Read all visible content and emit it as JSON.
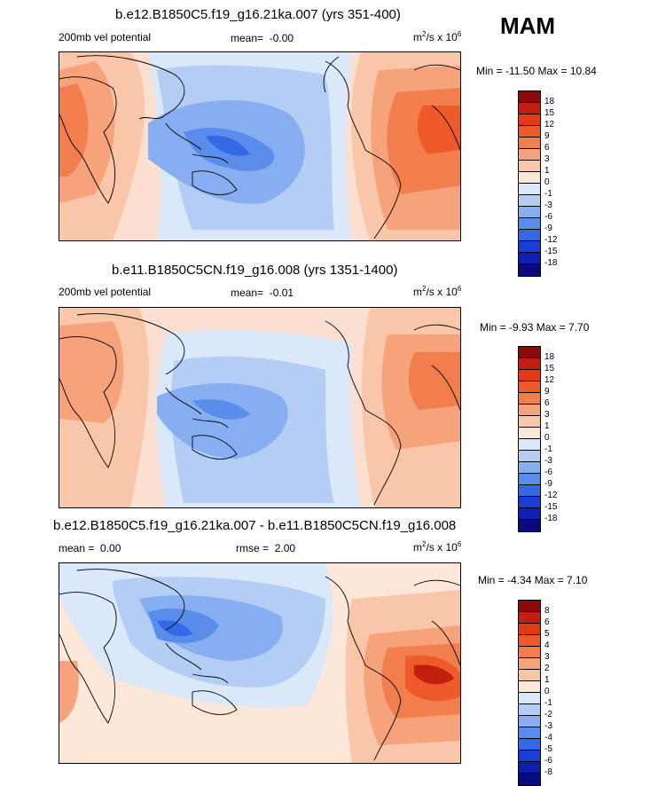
{
  "season": "MAM",
  "panels": [
    {
      "title": "b.e12.B1850C5.f19_g16.21ka.007 (yrs 351-400)",
      "left_label": "200mb vel potential",
      "mean_label": "mean=",
      "mean_value": "-0.00",
      "rmse_label": "",
      "rmse_value": "",
      "units_base": "m",
      "units_sup": "2",
      "units_mid": "/s x 10",
      "units_exp": "6",
      "minmax": "Min = -11.50 Max =  10.84",
      "levels": [
        "18",
        "15",
        "12",
        "9",
        "6",
        "3",
        "1",
        "0",
        "-1",
        "-3",
        "-6",
        "-9",
        "-12",
        "-15",
        "-18"
      ]
    },
    {
      "title": "b.e11.B1850C5CN.f19_g16.008 (yrs 1351-1400)",
      "left_label": "200mb vel potential",
      "mean_label": "mean=",
      "mean_value": "-0.01",
      "rmse_label": "",
      "rmse_value": "",
      "units_base": "m",
      "units_sup": "2",
      "units_mid": "/s x 10",
      "units_exp": "6",
      "minmax": "Min = -9.93 Max =  7.70",
      "levels": [
        "18",
        "15",
        "12",
        "9",
        "6",
        "3",
        "1",
        "0",
        "-1",
        "-3",
        "-6",
        "-9",
        "-12",
        "-15",
        "-18"
      ]
    },
    {
      "title": "b.e12.B1850C5.f19_g16.21ka.007 - b.e11.B1850C5CN.f19_g16.008",
      "left_label": "",
      "mean_label": "mean =",
      "mean_value": "0.00",
      "rmse_label": "rmse =",
      "rmse_value": "2.00",
      "units_base": "m",
      "units_sup": "2",
      "units_mid": "/s x 10",
      "units_exp": "6",
      "minmax": "Min = -4.34 Max =  7.10",
      "levels": [
        "8",
        "6",
        "5",
        "4",
        "3",
        "2",
        "1",
        "0",
        "-1",
        "-2",
        "-3",
        "-4",
        "-5",
        "-6",
        "-8"
      ]
    }
  ],
  "colors": {
    "scale": [
      "#8c0a0a",
      "#c21f0f",
      "#e23a15",
      "#ef5a2a",
      "#f27e4e",
      "#f6a27b",
      "#f9c6a9",
      "#fde7d9",
      "#dbe8fa",
      "#b3cdf5",
      "#86aef0",
      "#5a8ceb",
      "#3468e6",
      "#1a3fd9",
      "#0a20b0",
      "#0a0a80"
    ],
    "sea_base": "#fbe0d2"
  },
  "chart_data": [
    {
      "type": "heatmap",
      "title": "b.e12.B1850C5.f19_g16.21ka.007 (yrs 351-400)",
      "variable": "200mb vel potential",
      "units": "m2/s x 10^6",
      "season": "MAM",
      "mean": -0.0,
      "min": -11.5,
      "max": 10.84,
      "levels": [
        -18,
        -15,
        -12,
        -9,
        -6,
        -3,
        -1,
        0,
        1,
        3,
        6,
        9,
        12,
        15,
        18
      ]
    },
    {
      "type": "heatmap",
      "title": "b.e11.B1850C5CN.f19_g16.008 (yrs 1351-1400)",
      "variable": "200mb vel potential",
      "units": "m2/s x 10^6",
      "season": "MAM",
      "mean": -0.01,
      "min": -9.93,
      "max": 7.7,
      "levels": [
        -18,
        -15,
        -12,
        -9,
        -6,
        -3,
        -1,
        0,
        1,
        3,
        6,
        9,
        12,
        15,
        18
      ]
    },
    {
      "type": "heatmap",
      "title": "b.e12.B1850C5.f19_g16.21ka.007 - b.e11.B1850C5CN.f19_g16.008",
      "units": "m2/s x 10^6",
      "season": "MAM",
      "mean": 0.0,
      "rmse": 2.0,
      "min": -4.34,
      "max": 7.1,
      "levels": [
        -8,
        -6,
        -5,
        -4,
        -3,
        -2,
        -1,
        0,
        1,
        2,
        3,
        4,
        5,
        6,
        8
      ]
    }
  ]
}
